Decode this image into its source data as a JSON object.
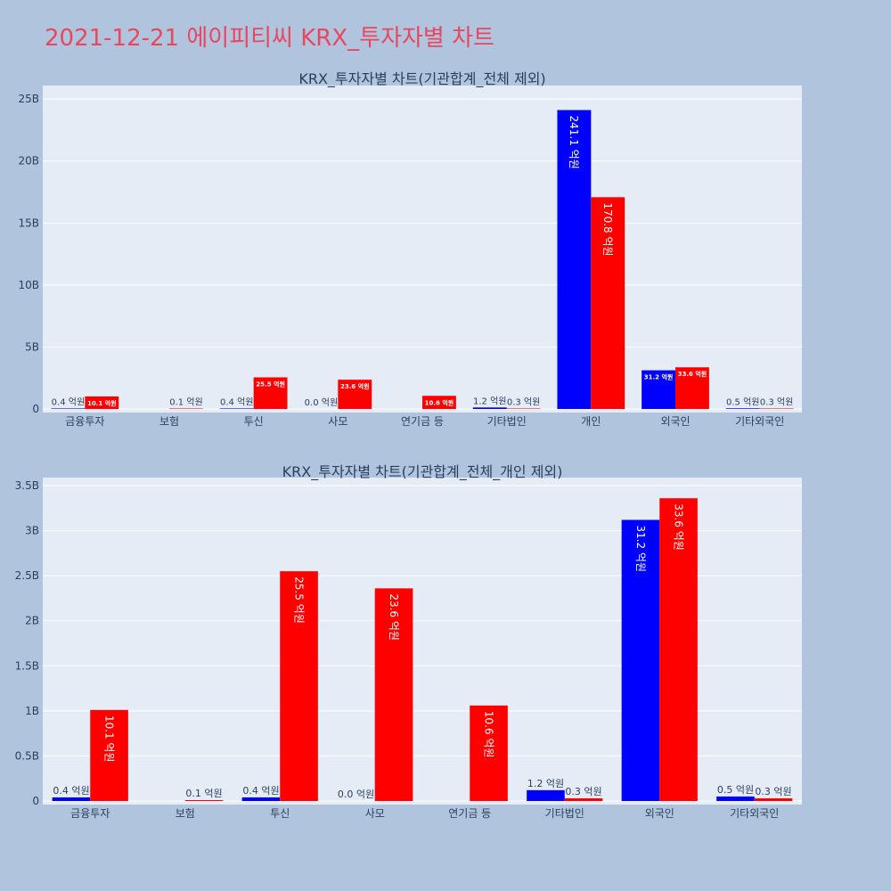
{
  "page_title": "2021-12-21 에이피티씨 KRX_투자자별 차트",
  "colors": {
    "background": "#b0c4de",
    "plot_background": "#e5ecf6",
    "grid": "#ffffff",
    "series_a": "#0000ff",
    "series_b": "#ff0000",
    "title": "#e8475f",
    "text": "#2a3f5f"
  },
  "chart_data": [
    {
      "type": "bar",
      "title": "KRX_투자자별 차트(기관합계_전체 제외)",
      "categories": [
        "금융투자",
        "보험",
        "투신",
        "사모",
        "연기금 등",
        "기타법인",
        "개인",
        "외국인",
        "기타외국인"
      ],
      "yticks": [
        "0",
        "5B",
        "10B",
        "15B",
        "20B",
        "25B"
      ],
      "ylim": [
        0,
        25800000000
      ],
      "grid": true,
      "series": [
        {
          "values": [
            40000000,
            0,
            40000000,
            0,
            0,
            120000000,
            24110000000,
            3120000000,
            50000000
          ],
          "labels": [
            "0.4 억원",
            "",
            "0.4 억원",
            "0.0 억원",
            "",
            "1.2 억원",
            "241.1 억원",
            "31.2 억원",
            "0.5 억원"
          ]
        },
        {
          "values": [
            1010000000,
            10000000,
            2550000000,
            2360000000,
            1060000000,
            30000000,
            17080000000,
            3360000000,
            30000000
          ],
          "labels": [
            "10.1 억원",
            "0.1 억원",
            "25.5 억원",
            "23.6 억원",
            "10.6 억원",
            "0.3 억원",
            "170.8 억원",
            "33.6 억원",
            "0.3 억원"
          ]
        }
      ]
    },
    {
      "type": "bar",
      "title": "KRX_투자자별 차트(기관합계_전체_개인 제외)",
      "categories": [
        "금융투자",
        "보험",
        "투신",
        "사모",
        "연기금 등",
        "기타법인",
        "외국인",
        "기타외국인"
      ],
      "yticks": [
        "0",
        "0.5B",
        "1B",
        "1.5B",
        "2B",
        "2.5B",
        "3B",
        "3.5B"
      ],
      "ylim": [
        0,
        3550000000
      ],
      "grid": true,
      "series": [
        {
          "values": [
            40000000,
            0,
            40000000,
            0,
            0,
            120000000,
            3120000000,
            50000000
          ],
          "labels": [
            "0.4 억원",
            "",
            "0.4 억원",
            "0.0 억원",
            "",
            "1.2 억원",
            "31.2 억원",
            "0.5 억원"
          ]
        },
        {
          "values": [
            1010000000,
            10000000,
            2550000000,
            2360000000,
            1060000000,
            30000000,
            3360000000,
            30000000
          ],
          "labels": [
            "10.1 억원",
            "0.1 억원",
            "25.5 억원",
            "23.6 억원",
            "10.6 억원",
            "0.3 억원",
            "33.6 억원",
            "0.3 억원"
          ]
        }
      ]
    }
  ]
}
